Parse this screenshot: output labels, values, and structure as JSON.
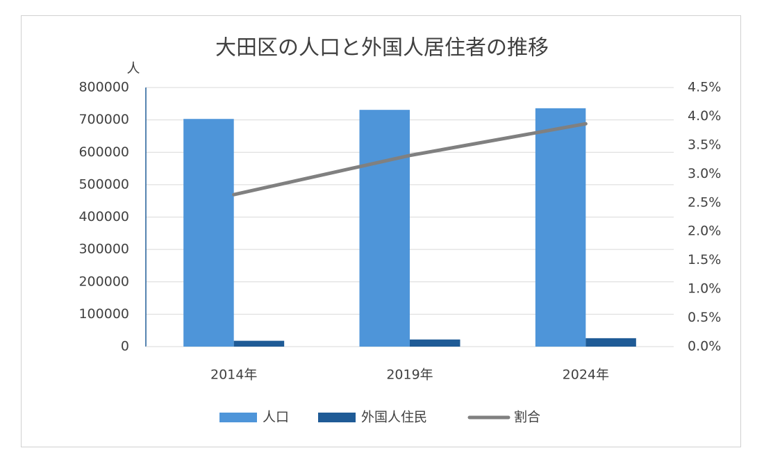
{
  "chart_data": {
    "type": "bar",
    "title": "大田区の人口と外国人居住者の推移",
    "ylabel": "人",
    "categories": [
      "2014年",
      "2019年",
      "2024年"
    ],
    "series": [
      {
        "name": "人口",
        "color": "#4e95d9",
        "values": [
          703000,
          731000,
          736000
        ]
      },
      {
        "name": "外国人住民",
        "color": "#1f5b96",
        "values": [
          18000,
          22000,
          26000
        ]
      },
      {
        "name": "割合",
        "color": "#808080",
        "type": "line",
        "axis": "y2",
        "values": [
          2.64,
          3.32,
          3.87
        ]
      }
    ],
    "ylim": [
      0,
      800000
    ],
    "yticks": [
      0,
      100000,
      200000,
      300000,
      400000,
      500000,
      600000,
      700000,
      800000
    ],
    "y2lim": [
      0,
      4.5
    ],
    "y2ticks": [
      {
        "value": 0,
        "label": "0.0%"
      },
      {
        "value": 0.5,
        "label": "0.5%"
      },
      {
        "value": 1,
        "label": "1.0%"
      },
      {
        "value": 1.5,
        "label": "1.5%"
      },
      {
        "value": 2,
        "label": "2.0%"
      },
      {
        "value": 2.5,
        "label": "2.5%"
      },
      {
        "value": 3,
        "label": "3.0%"
      },
      {
        "value": 3.5,
        "label": "3.5%"
      },
      {
        "value": 4,
        "label": "4.0%"
      },
      {
        "value": 4.5,
        "label": "4.5%"
      }
    ],
    "grid": true,
    "legend": "bottom"
  }
}
